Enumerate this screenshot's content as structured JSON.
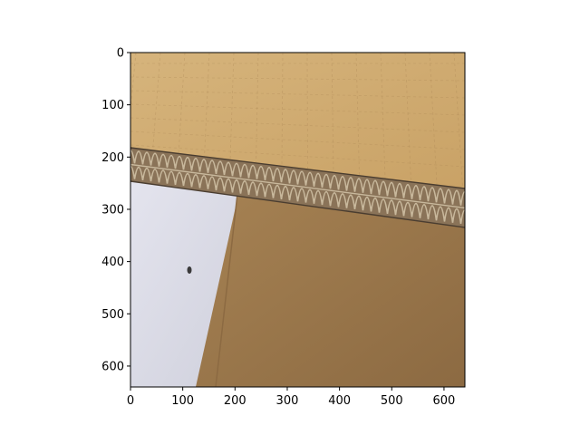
{
  "figure": {
    "type": "image-plot",
    "image_subject": "corrugated-cardboard-edge",
    "x_axis": {
      "range": [
        0,
        640
      ],
      "ticks": [
        {
          "value": 0,
          "label": "0"
        },
        {
          "value": 100,
          "label": "100"
        },
        {
          "value": 200,
          "label": "200"
        },
        {
          "value": 300,
          "label": "300"
        },
        {
          "value": 400,
          "label": "400"
        },
        {
          "value": 500,
          "label": "500"
        },
        {
          "value": 600,
          "label": "600"
        }
      ]
    },
    "y_axis": {
      "range": [
        0,
        640
      ],
      "inverted": true,
      "ticks": [
        {
          "value": 0,
          "label": "0"
        },
        {
          "value": 100,
          "label": "100"
        },
        {
          "value": 200,
          "label": "200"
        },
        {
          "value": 300,
          "label": "300"
        },
        {
          "value": 400,
          "label": "400"
        },
        {
          "value": 500,
          "label": "500"
        },
        {
          "value": 600,
          "label": "600"
        }
      ]
    },
    "colors": {
      "cardboard_top": "#c9a266",
      "cardboard_top_light": "#d6b47c",
      "cardboard_edge": "#8a7358",
      "flute_dark": "#4a3d30",
      "flute_light": "#c8b89c",
      "background_panel": "#a68253",
      "background_panel_dark": "#8c6a42",
      "wall": "#e4e4ee",
      "wall_shadow": "#cfd0dc",
      "spot": "#3a3a3a"
    }
  }
}
